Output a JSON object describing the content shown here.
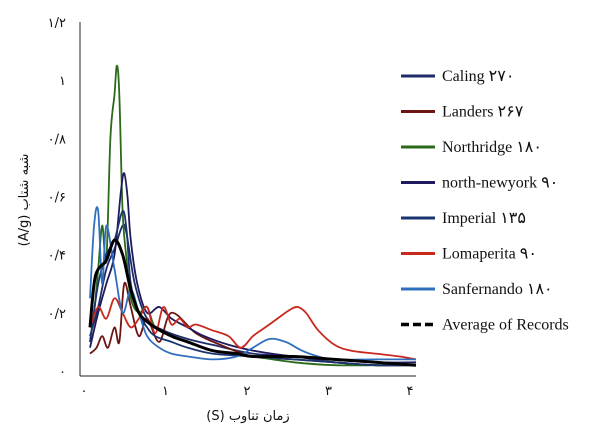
{
  "chart_data": {
    "type": "line",
    "xlabel": "زمان تناوب (S)",
    "ylabel": "شبه شتاب (A/g)",
    "xlim": [
      0,
      4
    ],
    "ylim": [
      0,
      1.2
    ],
    "x_ticks": [
      {
        "value": 0,
        "label": "۰"
      },
      {
        "value": 1,
        "label": "۱"
      },
      {
        "value": 2,
        "label": "۲"
      },
      {
        "value": 3,
        "label": "۳"
      },
      {
        "value": 4,
        "label": "۴"
      }
    ],
    "y_ticks": [
      {
        "value": 0,
        "label": "۰"
      },
      {
        "value": 0.2,
        "label": "۰/۲"
      },
      {
        "value": 0.4,
        "label": "۰/۴"
      },
      {
        "value": 0.6,
        "label": "۰/۶"
      },
      {
        "value": 0.8,
        "label": "۰/۸"
      },
      {
        "value": 1.0,
        "label": "۱"
      },
      {
        "value": 1.2,
        "label": "۱/۲"
      }
    ],
    "grid": false,
    "legend_position": "right",
    "series": [
      {
        "name": "Caling ۲۷۰",
        "color": "#1f2a6b",
        "dash": false,
        "width": 1.8,
        "x": [
          0,
          0.1,
          0.2,
          0.3,
          0.4,
          0.45,
          0.55,
          0.7,
          0.9,
          1.2,
          1.5,
          2.0,
          2.5,
          3.0,
          3.5,
          4.0
        ],
        "y": [
          0.12,
          0.22,
          0.35,
          0.42,
          0.5,
          0.47,
          0.3,
          0.18,
          0.14,
          0.11,
          0.09,
          0.06,
          0.05,
          0.03,
          0.02,
          0.02
        ]
      },
      {
        "name": "Landers ۲۶۷",
        "color": "#6b1414",
        "dash": false,
        "width": 1.8,
        "x": [
          0,
          0.08,
          0.15,
          0.22,
          0.3,
          0.36,
          0.42,
          0.5,
          0.6,
          0.7,
          0.85,
          1.0,
          1.3,
          1.6,
          2.0,
          2.5,
          3.0,
          3.5,
          4.0
        ],
        "y": [
          0.06,
          0.08,
          0.12,
          0.08,
          0.15,
          0.1,
          0.3,
          0.22,
          0.12,
          0.18,
          0.1,
          0.2,
          0.13,
          0.09,
          0.05,
          0.04,
          0.03,
          0.02,
          0.02
        ]
      },
      {
        "name": "Northridge ۱۸۰",
        "color": "#2a6a1a",
        "dash": false,
        "width": 1.8,
        "x": [
          0,
          0.05,
          0.1,
          0.15,
          0.2,
          0.25,
          0.3,
          0.33,
          0.36,
          0.4,
          0.45,
          0.5,
          0.6,
          0.7,
          0.8,
          1.0,
          1.2,
          1.5,
          2.0,
          2.5,
          3.0,
          3.5,
          4.0
        ],
        "y": [
          0.1,
          0.2,
          0.35,
          0.5,
          0.38,
          0.8,
          0.95,
          1.05,
          0.95,
          0.55,
          0.38,
          0.25,
          0.2,
          0.22,
          0.15,
          0.12,
          0.1,
          0.07,
          0.05,
          0.03,
          0.02,
          0.02,
          0.02
        ]
      },
      {
        "name": "north-newyork ۹۰",
        "color": "#1e1a5e",
        "dash": false,
        "width": 1.8,
        "x": [
          0,
          0.1,
          0.2,
          0.3,
          0.38,
          0.42,
          0.46,
          0.5,
          0.58,
          0.7,
          0.85,
          1.0,
          1.2,
          1.4,
          1.7,
          2.0,
          2.5,
          3.0,
          3.5,
          4.0
        ],
        "y": [
          0.08,
          0.2,
          0.3,
          0.4,
          0.62,
          0.68,
          0.6,
          0.45,
          0.3,
          0.2,
          0.22,
          0.18,
          0.15,
          0.12,
          0.09,
          0.07,
          0.05,
          0.04,
          0.03,
          0.03
        ]
      },
      {
        "name": "Imperial ۱۳۵",
        "color": "#1a3470",
        "dash": false,
        "width": 1.8,
        "x": [
          0,
          0.1,
          0.2,
          0.3,
          0.4,
          0.45,
          0.5,
          0.6,
          0.7,
          0.8,
          1.0,
          1.2,
          1.5,
          2.0,
          2.5,
          3.0,
          3.5,
          4.0
        ],
        "y": [
          0.1,
          0.3,
          0.4,
          0.45,
          0.55,
          0.48,
          0.3,
          0.2,
          0.15,
          0.12,
          0.1,
          0.08,
          0.06,
          0.05,
          0.04,
          0.03,
          0.02,
          0.02
        ]
      },
      {
        "name": "Lomaperita ۹۰",
        "color": "#c8281e",
        "dash": false,
        "width": 1.8,
        "x": [
          0,
          0.1,
          0.2,
          0.3,
          0.4,
          0.5,
          0.6,
          0.7,
          0.8,
          0.9,
          1.0,
          1.1,
          1.2,
          1.3,
          1.5,
          1.7,
          1.85,
          2.0,
          2.15,
          2.3,
          2.45,
          2.55,
          2.65,
          2.8,
          3.0,
          3.2,
          3.5,
          3.8,
          4.0
        ],
        "y": [
          0.15,
          0.22,
          0.18,
          0.25,
          0.2,
          0.15,
          0.18,
          0.22,
          0.13,
          0.22,
          0.16,
          0.18,
          0.15,
          0.16,
          0.14,
          0.12,
          0.08,
          0.12,
          0.15,
          0.18,
          0.21,
          0.22,
          0.2,
          0.14,
          0.09,
          0.07,
          0.06,
          0.05,
          0.04
        ]
      },
      {
        "name": "Sanfernando ۱۸۰",
        "color": "#2f6fbd",
        "dash": false,
        "width": 1.8,
        "x": [
          0,
          0.05,
          0.1,
          0.15,
          0.2,
          0.3,
          0.4,
          0.5,
          0.6,
          0.7,
          0.85,
          1.0,
          1.2,
          1.5,
          1.8,
          2.0,
          2.2,
          2.4,
          2.6,
          2.8,
          3.0,
          3.5,
          4.0
        ],
        "y": [
          0.25,
          0.5,
          0.55,
          0.3,
          0.5,
          0.35,
          0.2,
          0.28,
          0.2,
          0.12,
          0.08,
          0.06,
          0.05,
          0.04,
          0.05,
          0.08,
          0.11,
          0.1,
          0.07,
          0.05,
          0.04,
          0.04,
          0.04
        ]
      },
      {
        "name": "Average of Records",
        "color": "#000000",
        "dash": true,
        "width": 3,
        "x": [
          0,
          0.05,
          0.1,
          0.2,
          0.3,
          0.4,
          0.5,
          0.6,
          0.7,
          0.8,
          1.0,
          1.2,
          1.5,
          1.8,
          2.0,
          2.5,
          3.0,
          3.5,
          4.0
        ],
        "y": [
          0.15,
          0.3,
          0.35,
          0.38,
          0.45,
          0.4,
          0.28,
          0.2,
          0.17,
          0.15,
          0.12,
          0.1,
          0.07,
          0.06,
          0.05,
          0.05,
          0.04,
          0.03,
          0.02
        ]
      }
    ]
  }
}
